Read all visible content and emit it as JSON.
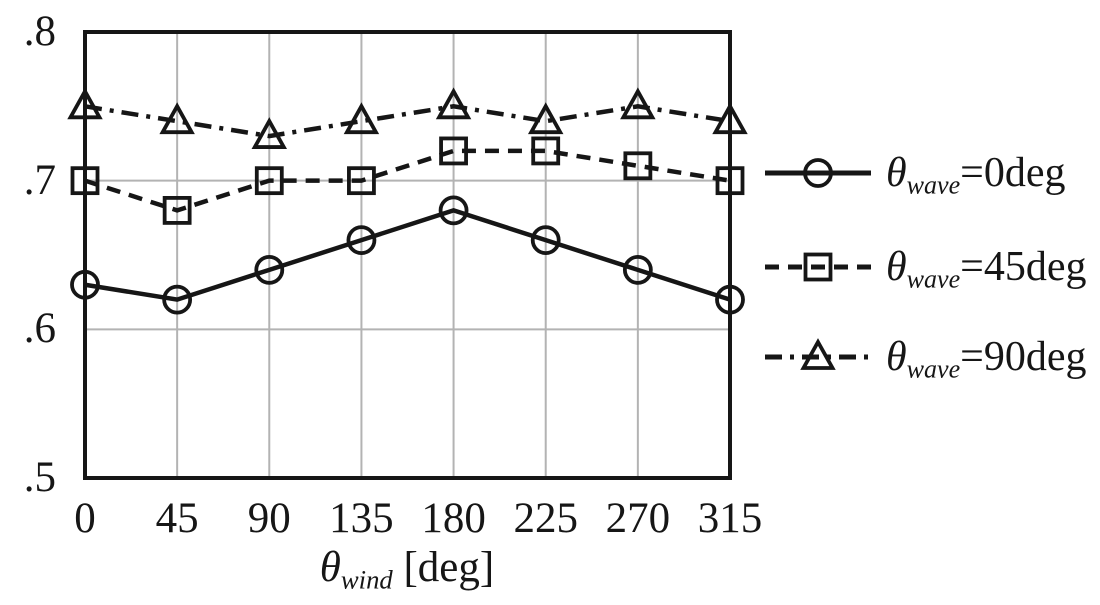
{
  "figure": {
    "background": "#ffffff",
    "ink_color": "#161616",
    "grid_color": "#b3b3b3"
  },
  "chart_data": {
    "type": "line",
    "x": [
      0,
      45,
      90,
      135,
      180,
      225,
      270,
      315
    ],
    "x_tick_labels": [
      "0",
      "45",
      "90",
      "135",
      "180",
      "225",
      "270",
      "315"
    ],
    "xlabel": {
      "symbol": "θ",
      "subscript": "wind",
      "unit": " [deg]"
    },
    "ylabel": "",
    "ylim": [
      0.5,
      0.8
    ],
    "y_ticks": [
      0.5,
      0.6,
      0.7,
      0.8
    ],
    "y_tick_labels": [
      ".5",
      ".6",
      ".7",
      ".8"
    ],
    "grid": "both",
    "legend_position": "right",
    "series": [
      {
        "name": "theta-wave-0deg",
        "label": {
          "symbol": "θ",
          "subscript": "wave",
          "value": "=0deg"
        },
        "line_style": "solid",
        "marker": "circle",
        "values": [
          0.63,
          0.62,
          0.64,
          0.66,
          0.68,
          0.66,
          0.64,
          0.62
        ]
      },
      {
        "name": "theta-wave-45deg",
        "label": {
          "symbol": "θ",
          "subscript": "wave",
          "value": "=45deg"
        },
        "line_style": "dashed",
        "marker": "square",
        "values": [
          0.7,
          0.68,
          0.7,
          0.7,
          0.72,
          0.72,
          0.71,
          0.7
        ]
      },
      {
        "name": "theta-wave-90deg",
        "label": {
          "symbol": "θ",
          "subscript": "wave",
          "value": "=90deg"
        },
        "line_style": "dashdot",
        "marker": "triangle",
        "values": [
          0.75,
          0.74,
          0.73,
          0.74,
          0.75,
          0.74,
          0.75,
          0.74
        ]
      }
    ]
  }
}
